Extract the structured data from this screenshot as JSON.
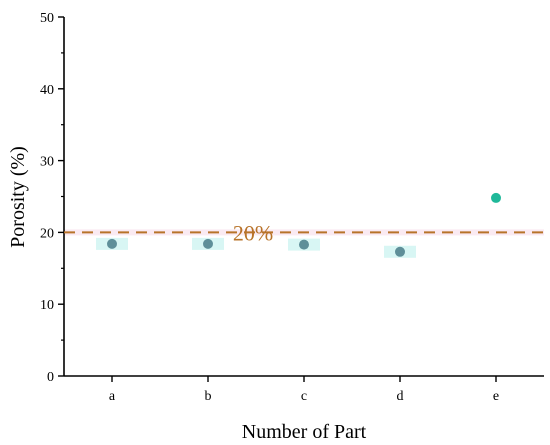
{
  "chart_data": {
    "type": "scatter",
    "categories": [
      "a",
      "b",
      "c",
      "d",
      "e"
    ],
    "values": [
      18.4,
      18.4,
      18.3,
      17.3,
      24.8
    ],
    "point_colors": [
      "#5f8f99",
      "#5f8f99",
      "#5f8f99",
      "#5f8f99",
      "#1fb899"
    ],
    "xlabel": "Number of Part",
    "ylabel": "Porosity (%)",
    "ylim": [
      0,
      50
    ],
    "yticks": [
      0,
      10,
      20,
      30,
      40,
      50
    ],
    "reference_line": {
      "value": 20,
      "label": "20%",
      "color": "#b8732a",
      "style": "dashed"
    },
    "grid": false,
    "colors": {
      "band_highlight": "#f7dcea",
      "point_halo": "#d8f6f4",
      "axis": "#000000"
    }
  }
}
